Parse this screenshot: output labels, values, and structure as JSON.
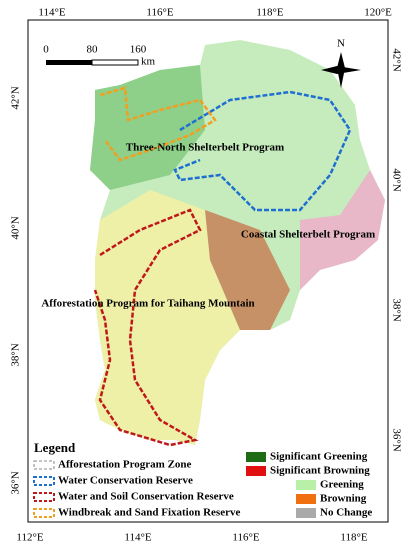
{
  "axes": {
    "top": [
      "114°E",
      "116°E",
      "118°E",
      "120°E"
    ],
    "bottom": [
      "112°E",
      "114°E",
      "116°E",
      "118°E"
    ],
    "left": [
      "42°N",
      "40°N",
      "38°N",
      "36°N"
    ],
    "right": [
      "42°N",
      "40°N",
      "38°N",
      "36°N"
    ]
  },
  "scale_bar": {
    "labels": [
      "0",
      "80",
      "160"
    ],
    "unit": "km"
  },
  "north_arrow": "N",
  "regions": [
    "Three-North Shelterbelt Program",
    "Coastal Shelterbelt Program",
    "Afforestation Program for Taihang Mountain"
  ],
  "legend": {
    "title": "Legend",
    "items": [
      "Afforestation Program Zone",
      "Water Conservation Reserve",
      "Water and Soil Conservation Reserve",
      "Windbreak and Sand Fixation Reserve"
    ]
  },
  "change_legend": {
    "items": [
      "Significant Greening",
      "Significant Browning",
      "Greening",
      "Browning",
      "No Change"
    ]
  }
}
